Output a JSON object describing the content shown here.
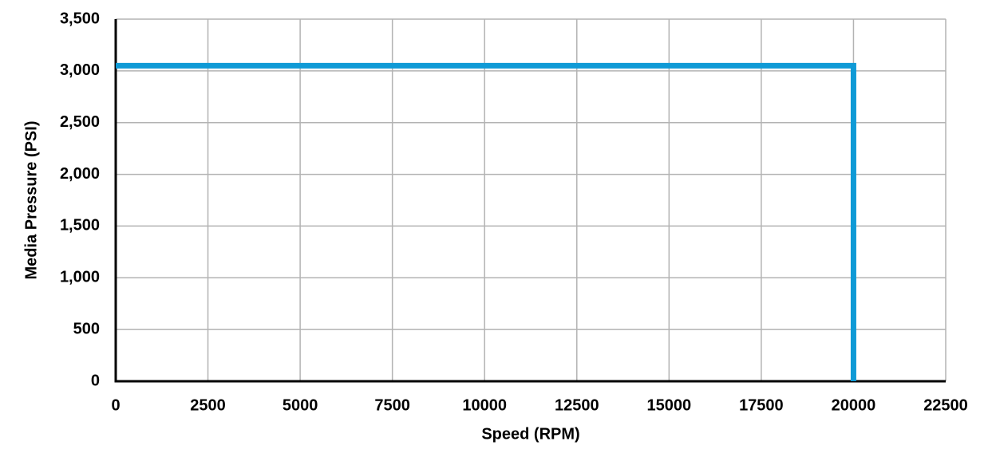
{
  "chart_data": {
    "type": "line",
    "x_label": "Speed (RPM)",
    "y_label": "Media Pressure (PSI)",
    "x": [
      0,
      20000,
      20000
    ],
    "values": [
      3050,
      3050,
      0
    ],
    "color": "#0f9ad6",
    "xlim": [
      0,
      22500
    ],
    "xticks": [
      0,
      2500,
      5000,
      7500,
      10000,
      12500,
      15000,
      17500,
      20000,
      22500
    ],
    "ylim": [
      0,
      3500
    ],
    "yticks": [
      0,
      500,
      {
        "value": 1000,
        "label": "1,000"
      },
      {
        "value": 1500,
        "label": "1,500"
      },
      {
        "value": 2000,
        "label": "2,000"
      },
      {
        "value": 2500,
        "label": "2,500"
      },
      {
        "value": 3000,
        "label": "3,000"
      },
      {
        "value": 3500,
        "label": "3,500"
      }
    ],
    "grid": true
  }
}
